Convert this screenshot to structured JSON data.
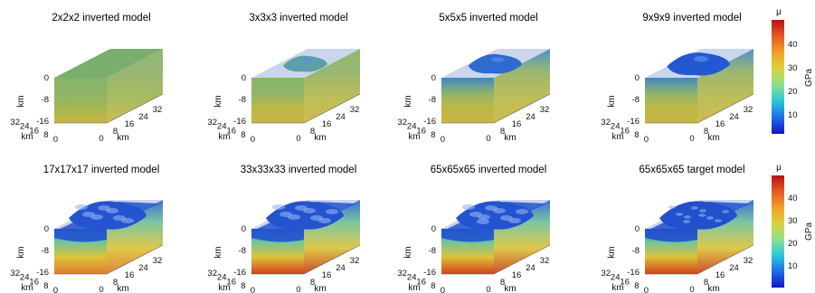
{
  "panels": [
    {
      "title": "2x2x2 inverted model",
      "detail": 0
    },
    {
      "title": "3x3x3 inverted model",
      "detail": 1
    },
    {
      "title": "5x5x5 inverted model",
      "detail": 2
    },
    {
      "title": "9x9x9 inverted model",
      "detail": 3
    },
    {
      "title": "17x17x17 inverted model",
      "detail": 4
    },
    {
      "title": "33x33x33 inverted model",
      "detail": 5
    },
    {
      "title": "65x65x65 inverted model",
      "detail": 6
    },
    {
      "title": "65x65x65 target model",
      "detail": 7
    }
  ],
  "axes": {
    "z_label": "km",
    "z_ticks": [
      "0",
      "-8",
      "-16"
    ],
    "y_label": "km",
    "y_ticks": [
      "32",
      "24",
      "16",
      "8",
      "0"
    ],
    "x_label": "km",
    "x_ticks": [
      "0",
      "8",
      "16",
      "24",
      "32"
    ]
  },
  "colorbar": {
    "title": "μ",
    "label": "GPa",
    "ticks": [
      "40",
      "30",
      "20",
      "10"
    ],
    "min": 2,
    "max": 50,
    "colors": [
      "#1414c8",
      "#1e6ee6",
      "#28c8dc",
      "#8ce08c",
      "#dcd23c",
      "#f0a028",
      "#e65a1e",
      "#b41414"
    ]
  }
}
